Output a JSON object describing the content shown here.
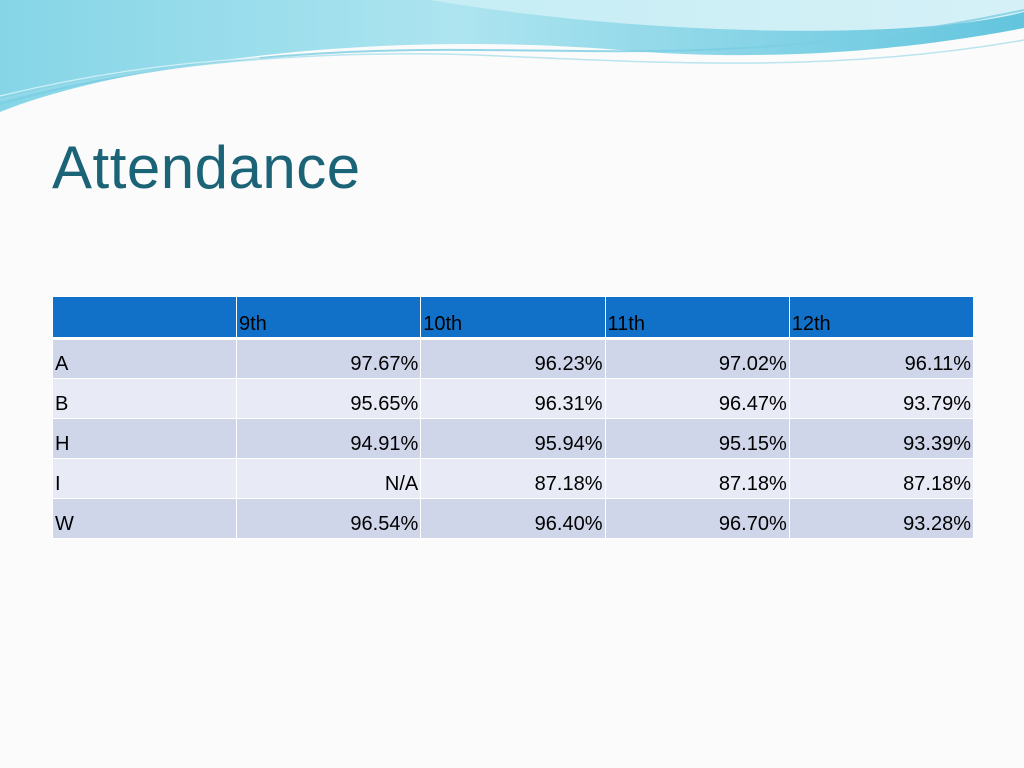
{
  "slide": {
    "title": "Attendance",
    "colors": {
      "title": "#1b6377",
      "header_bg": "#1170c8",
      "row_odd_bg": "#cfd6ea",
      "row_even_bg": "#e8ebf5",
      "wave_light": "#b6e8f2",
      "wave_dark": "#5fc3dc"
    }
  },
  "table": {
    "corner": "",
    "columns": [
      "9th",
      "10th",
      "11th",
      "12th"
    ],
    "rows": [
      {
        "label": "A",
        "values": [
          "97.67%",
          "96.23%",
          "97.02%",
          "96.11%"
        ]
      },
      {
        "label": "B",
        "values": [
          "95.65%",
          "96.31%",
          "96.47%",
          "93.79%"
        ]
      },
      {
        "label": "H",
        "values": [
          "94.91%",
          "95.94%",
          "95.15%",
          "93.39%"
        ]
      },
      {
        "label": "I",
        "values": [
          "N/A",
          "87.18%",
          "87.18%",
          "87.18%"
        ]
      },
      {
        "label": "W",
        "values": [
          "96.54%",
          "96.40%",
          "96.70%",
          "93.28%"
        ]
      }
    ]
  }
}
